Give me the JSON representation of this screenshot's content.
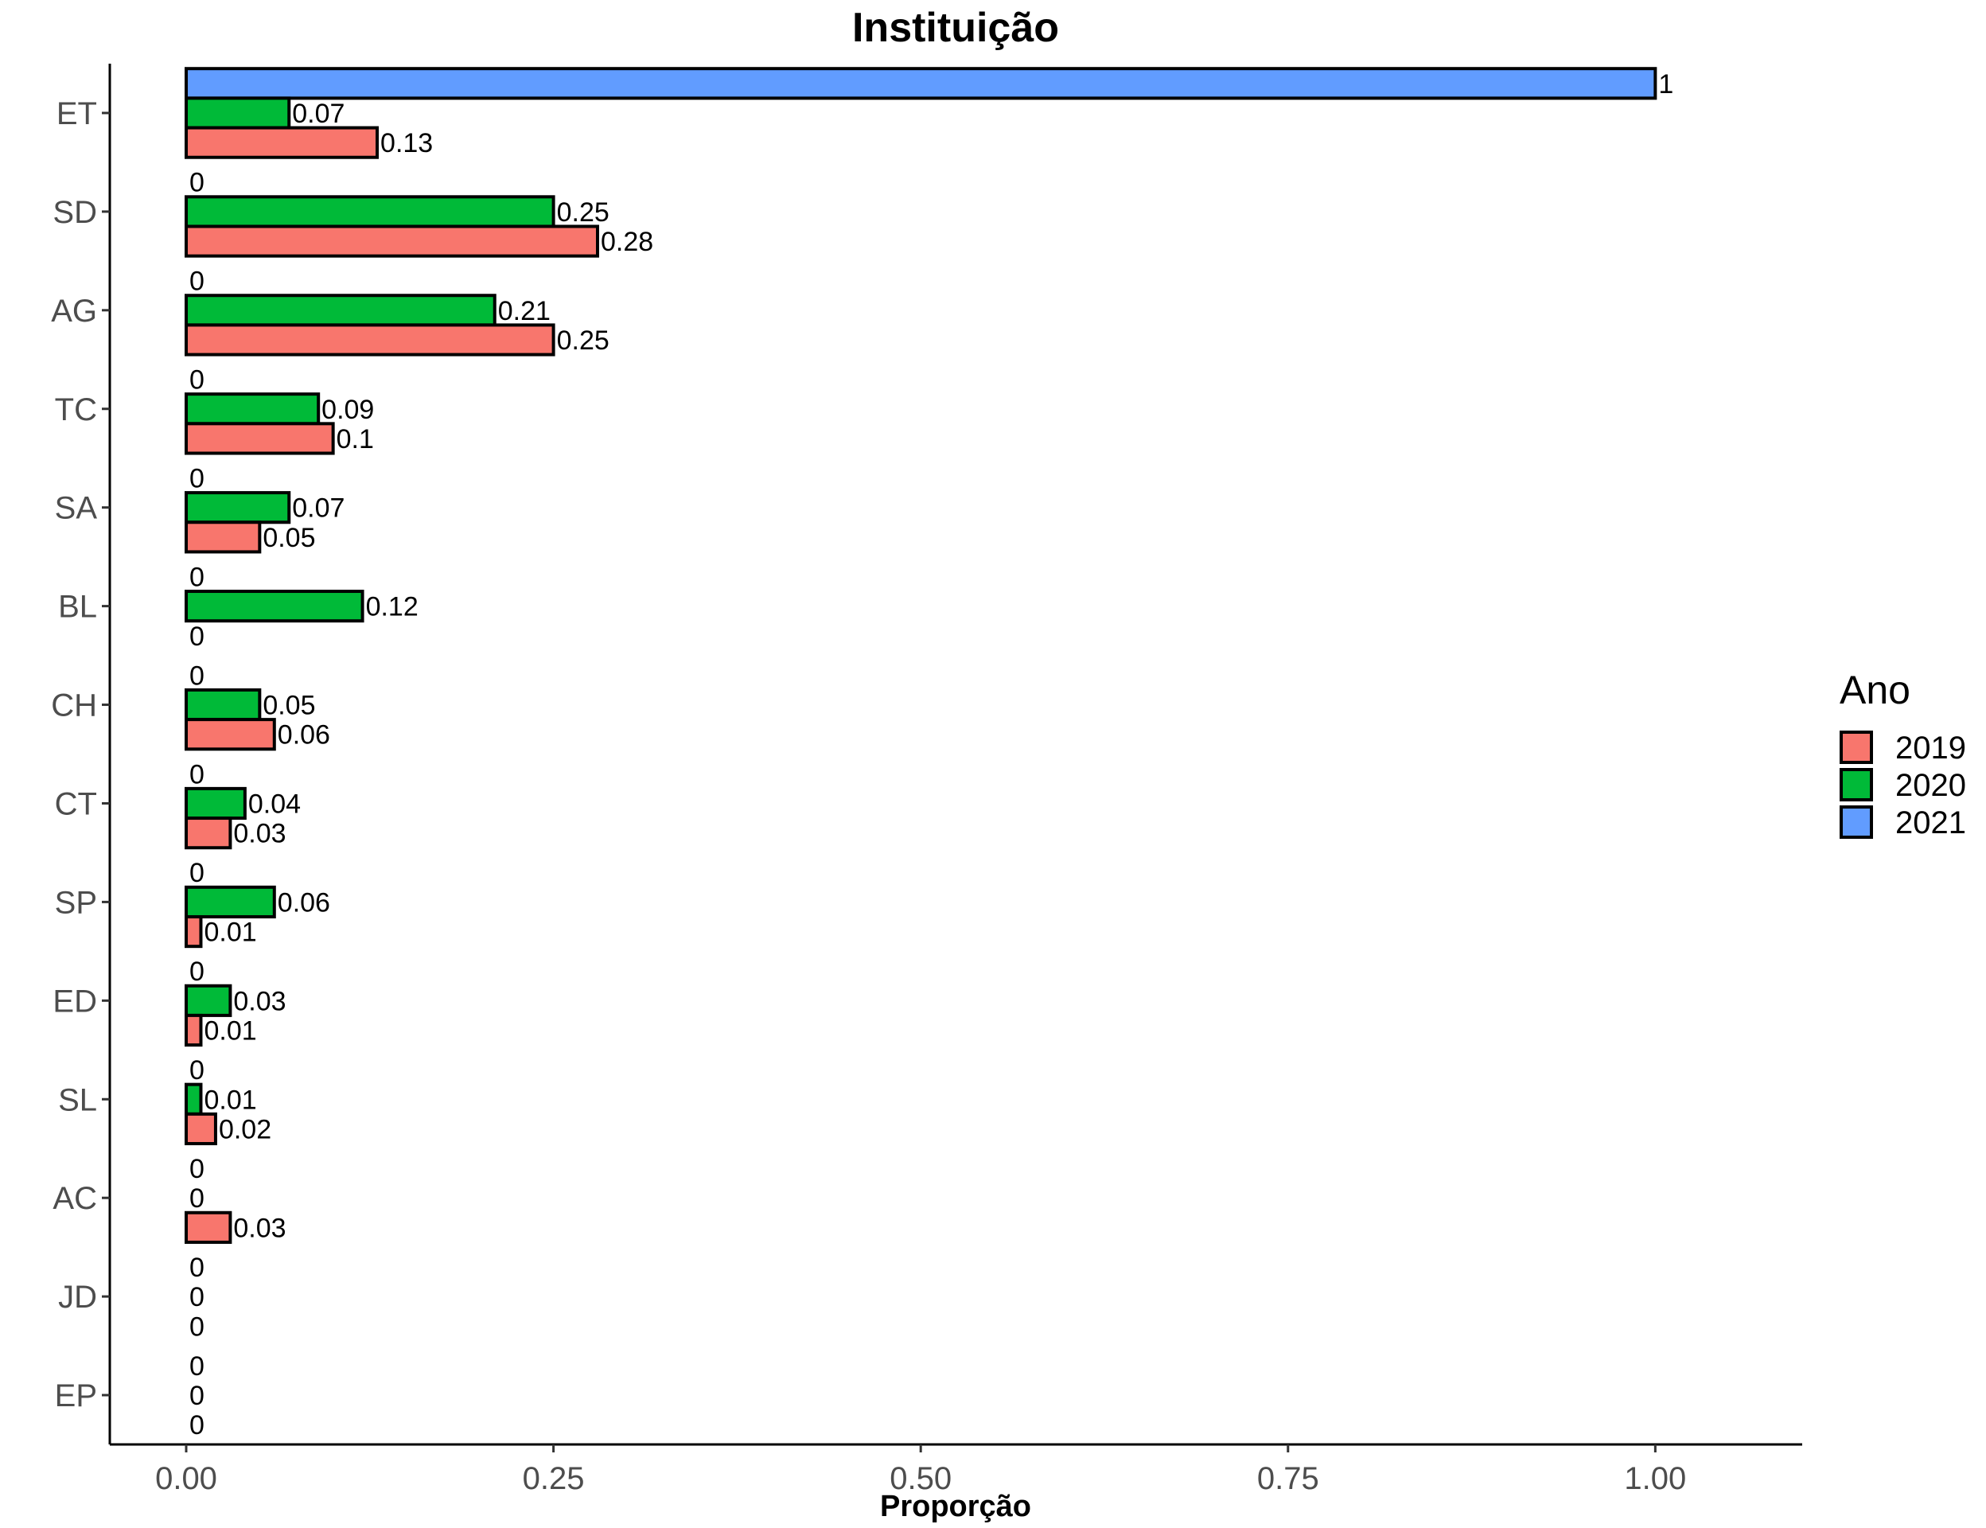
{
  "chart_data": {
    "type": "bar",
    "orientation": "horizontal",
    "title": "Instituição",
    "xlabel": "Proporção",
    "ylabel": "",
    "xlim": [
      -0.052,
      1.1
    ],
    "x_ticks": [
      0.0,
      0.25,
      0.5,
      0.75,
      1.0
    ],
    "x_tick_labels": [
      "0.00",
      "0.25",
      "0.50",
      "0.75",
      "1.00"
    ],
    "categories": [
      "ET",
      "SD",
      "AG",
      "TC",
      "SA",
      "BL",
      "CH",
      "CT",
      "SP",
      "ED",
      "SL",
      "AC",
      "JD",
      "EP"
    ],
    "series": [
      {
        "name": "2021",
        "color": "#619CFF",
        "values": [
          1,
          0,
          0,
          0,
          0,
          0,
          0,
          0,
          0,
          0,
          0,
          0,
          0,
          0
        ],
        "labels": [
          "1",
          "0",
          "0",
          "0",
          "0",
          "0",
          "0",
          "0",
          "0",
          "0",
          "0",
          "0",
          "0",
          "0"
        ]
      },
      {
        "name": "2020",
        "color": "#00BA38",
        "values": [
          0.07,
          0.25,
          0.21,
          0.09,
          0.07,
          0.12,
          0.05,
          0.04,
          0.06,
          0.03,
          0.01,
          0,
          0,
          0
        ],
        "labels": [
          "0.07",
          "0.25",
          "0.21",
          "0.09",
          "0.07",
          "0.12",
          "0.05",
          "0.04",
          "0.06",
          "0.03",
          "0.01",
          "0",
          "0",
          "0"
        ]
      },
      {
        "name": "2019",
        "color": "#F8766D",
        "values": [
          0.13,
          0.28,
          0.25,
          0.1,
          0.05,
          0,
          0.06,
          0.03,
          0.01,
          0.01,
          0.02,
          0.03,
          0,
          0
        ],
        "labels": [
          "0.13",
          "0.28",
          "0.25",
          "0.1",
          "0.05",
          "0",
          "0.06",
          "0.03",
          "0.01",
          "0.01",
          "0.02",
          "0.03",
          "0",
          "0"
        ]
      }
    ],
    "legend": {
      "title": "Ano",
      "position": "right",
      "entries": [
        {
          "label": "2019",
          "color": "#F8766D"
        },
        {
          "label": "2020",
          "color": "#00BA38"
        },
        {
          "label": "2021",
          "color": "#619CFF"
        }
      ]
    },
    "grid": false
  }
}
